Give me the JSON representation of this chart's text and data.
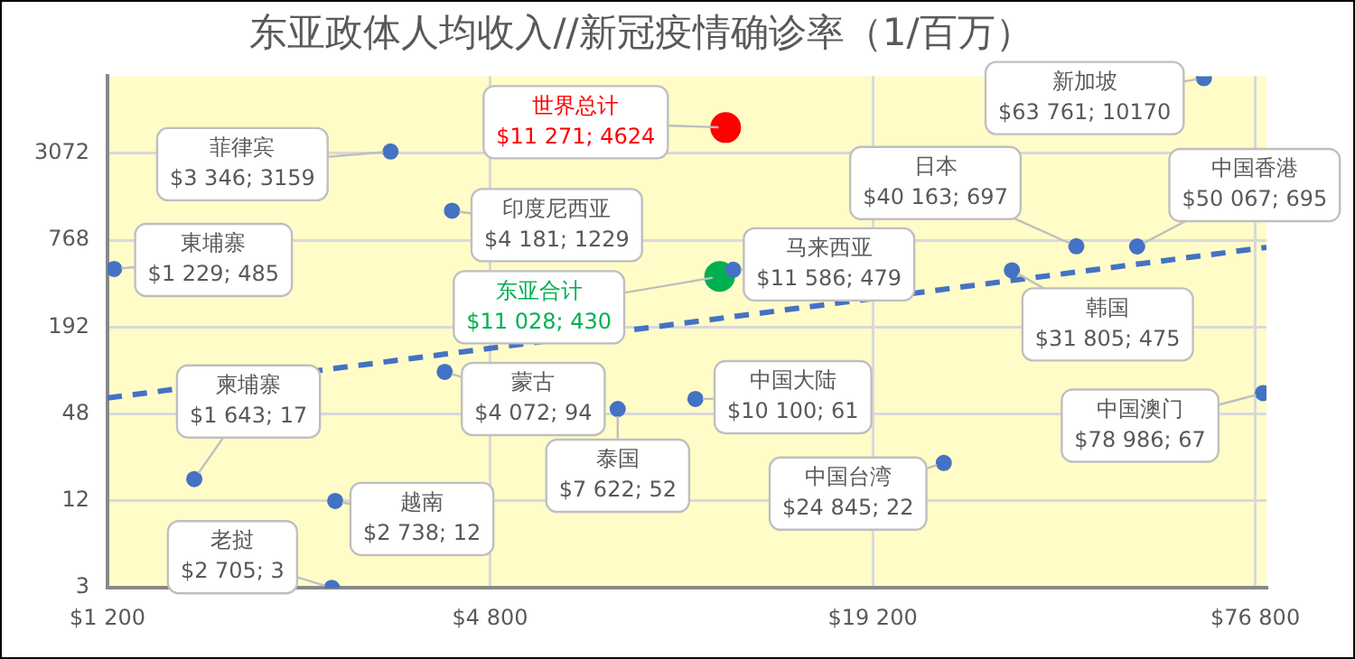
{
  "chart_data": {
    "type": "scatter",
    "title": "东亚政体人均收入//新冠疫情确诊率（1/百万）",
    "log": "xy",
    "grid": true,
    "legend": false,
    "marker": "circle",
    "xlim": [
      1200,
      80000
    ],
    "xticks": [
      {
        "value": 1200,
        "label": "$1 200"
      },
      {
        "value": 4800,
        "label": "$4 800"
      },
      {
        "value": 19200,
        "label": "$19 200"
      },
      {
        "value": 76800,
        "label": "$76 800"
      }
    ],
    "ylim": [
      3,
      10500
    ],
    "yticks": [
      3,
      12,
      48,
      192,
      768,
      3072
    ],
    "series": [
      {
        "color": "#4472c4",
        "x": [
          3346,
          1229,
          4181,
          11586,
          40163,
          50067,
          63761,
          31805,
          78986,
          10100,
          24845,
          4072,
          7622,
          1643,
          2738,
          2705
        ],
        "values": [
          3159,
          485,
          1229,
          479,
          697,
          695,
          10170,
          475,
          67,
          61,
          22,
          94,
          52,
          17,
          12,
          3
        ],
        "value_labels": [
          "菲律宾\n$3 346; 3159",
          "東埔寨\n$1 229; 485",
          "印度尼西亚\n$4 181; 1229",
          "马来西亚\n$11 586; 479",
          "日本\n$40 163; 697",
          "中国香港\n$50 067; 695",
          "新加坡\n$63 761; 10170",
          "韩国\n$31 805; 475",
          "中国澳门\n$78 986; 67",
          "中国大陆\n$10 100; 61",
          "中国台湾\n$24 845; 22",
          "蒙古\n$4 072; 94",
          "泰国\n$7 622; 52",
          "柬埔寨\n$1 643; 17",
          "越南\n$2 738; 12",
          "老挝\n$2 705; 3"
        ]
      },
      {
        "name": "世界总计",
        "color": "#ff0000",
        "x": [
          11271
        ],
        "values": [
          4624
        ],
        "value_labels": [
          "$11 271; 4624"
        ]
      },
      {
        "name": "东亚合计",
        "color": "#00b050",
        "x": [
          11028
        ],
        "values": [
          430
        ],
        "value_labels": [
          "$11 028; 430"
        ]
      },
      {
        "type": "line",
        "color": "#4472c4",
        "line_style": "dashed",
        "marker": "none",
        "x": [
          1200,
          80000
        ],
        "values": [
          62,
          685
        ]
      }
    ]
  }
}
